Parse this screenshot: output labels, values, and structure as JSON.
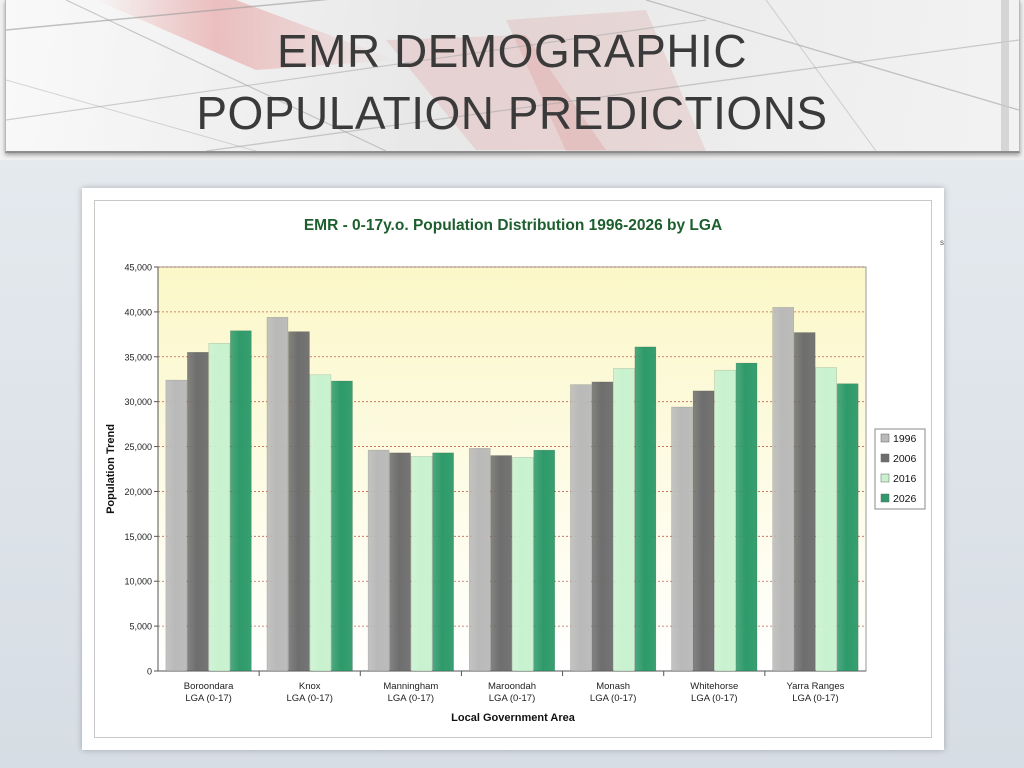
{
  "slide": {
    "title_line1": "EMR DEMOGRAPHIC",
    "title_line2": "POPULATION PREDICTIONS"
  },
  "colors": {
    "title": "#3a3a3a",
    "chart_title": "#1d5e2e",
    "plot_bg_top": "#fbf7c8",
    "plot_bg_bottom": "#ffffff",
    "gridline": "#b84a3a",
    "series": [
      "#b9b9b9",
      "#6e6e6e",
      "#c8f2cf",
      "#2e9a6a"
    ]
  },
  "chart_data": {
    "type": "bar",
    "title": "EMR - 0-17y.o. Population Distribution 1996-2026 by LGA",
    "xlabel": "Local Government Area",
    "ylabel": "Population Trend",
    "ylim": [
      0,
      45000
    ],
    "yticks": [
      0,
      5000,
      10000,
      15000,
      20000,
      25000,
      30000,
      35000,
      40000,
      45000
    ],
    "ytick_labels": [
      "0",
      "5,000",
      "10,000",
      "15,000",
      "20,000",
      "25,000",
      "30,000",
      "35,000",
      "40,000",
      "45,000"
    ],
    "grid": true,
    "legend_position": "right",
    "categories": [
      [
        "Boroondara",
        "LGA (0-17)"
      ],
      [
        "Knox",
        "LGA (0-17)"
      ],
      [
        "Manningham",
        "LGA (0-17)"
      ],
      [
        "Maroondah",
        "LGA (0-17)"
      ],
      [
        "Monash",
        "LGA (0-17)"
      ],
      [
        "Whitehorse",
        "LGA (0-17)"
      ],
      [
        "Yarra Ranges",
        "LGA (0-17)"
      ]
    ],
    "series": [
      {
        "name": "1996",
        "values": [
          32400,
          39400,
          24600,
          24800,
          31900,
          29400,
          40500
        ]
      },
      {
        "name": "2006",
        "values": [
          35500,
          37800,
          24300,
          24000,
          32200,
          31200,
          37700
        ]
      },
      {
        "name": "2016",
        "values": [
          36500,
          33000,
          23900,
          23800,
          33700,
          33500,
          33800
        ]
      },
      {
        "name": "2026",
        "values": [
          37900,
          32300,
          24300,
          24600,
          36100,
          34300,
          32000
        ]
      }
    ]
  }
}
